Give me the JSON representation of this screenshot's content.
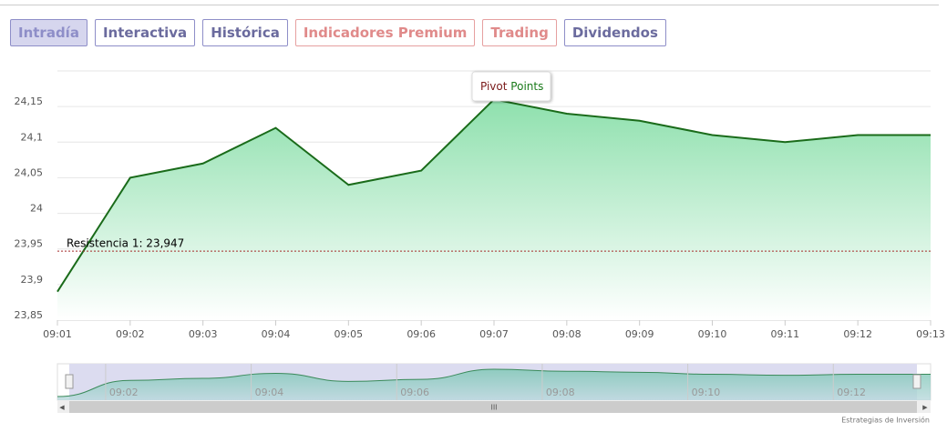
{
  "tabs": [
    "Intradía",
    "Interactiva",
    "Histórica",
    "Indicadores Premium",
    "Trading",
    "Dividendos"
  ],
  "chart_data": {
    "type": "area",
    "categories": [
      "09:01",
      "09:02",
      "09:03",
      "09:04",
      "09:05",
      "09:06",
      "09:07",
      "09:08",
      "09:09",
      "09:10",
      "09:11",
      "09:12",
      "09:13"
    ],
    "values": [
      23.89,
      24.05,
      24.07,
      24.12,
      24.04,
      24.06,
      24.16,
      24.14,
      24.13,
      24.11,
      24.1,
      24.11,
      24.11
    ],
    "color": "#1a6b1a",
    "ylim": [
      23.85,
      24.2
    ],
    "yticks": [
      {
        "value": 23.85,
        "label": "23,85"
      },
      {
        "value": 23.9,
        "label": "23,9"
      },
      {
        "value": 23.95,
        "label": "23,95"
      },
      {
        "value": 24,
        "label": "24"
      },
      {
        "value": 24.05,
        "label": "24,05"
      },
      {
        "value": 24.1,
        "label": "24,1"
      },
      {
        "value": 24.15,
        "label": "24,15"
      }
    ],
    "grid": true,
    "reference_line": {
      "value": 23.947,
      "label": "Resistencia 1: 23,947",
      "color": "#a52a2a"
    },
    "tooltip": {
      "first": "Pivot",
      "second": "Points"
    }
  },
  "footer": "Estrategias de Inversión"
}
